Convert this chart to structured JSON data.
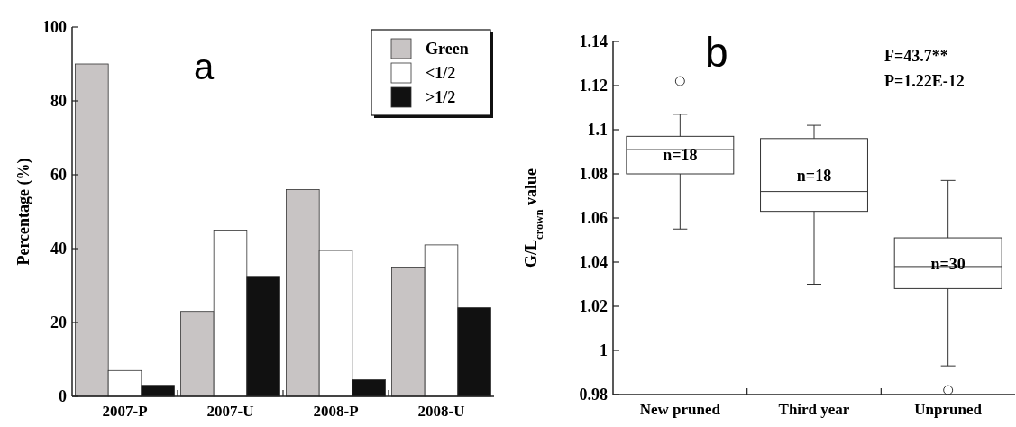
{
  "chart_data": [
    {
      "type": "bar",
      "title": "a",
      "ylabel": "Percentage (%)",
      "categories": [
        "2007-P",
        "2007-U",
        "2008-P",
        "2008-U"
      ],
      "series": [
        {
          "name": "Green",
          "color": "#c8c4c4",
          "values": [
            90,
            23,
            56,
            35
          ]
        },
        {
          "name": "<1/2",
          "color": "#ffffff",
          "values": [
            7,
            45,
            39.5,
            41
          ]
        },
        {
          "name": ">1/2",
          "color": "#111111",
          "values": [
            3,
            32.5,
            4.5,
            24
          ]
        }
      ],
      "ylim": [
        0,
        100
      ],
      "yticks": [
        0,
        20,
        40,
        60,
        80,
        100
      ],
      "legend": "top right",
      "grid": false
    },
    {
      "type": "box",
      "title": "b",
      "ylabel": "G/L$_{crown}$ value",
      "categories": [
        "New pruned",
        "Third year",
        "Unpruned"
      ],
      "boxes": [
        {
          "low": 1.055,
          "q1": 1.08,
          "median": 1.091,
          "q3": 1.097,
          "high": 1.107,
          "outliers": [
            1.122
          ]
        },
        {
          "low": 1.03,
          "q1": 1.063,
          "median": 1.072,
          "q3": 1.096,
          "high": 1.102
        },
        {
          "low": 0.993,
          "q1": 1.028,
          "median": 1.038,
          "q3": 1.051,
          "high": 1.077,
          "outliers": [
            0.982
          ]
        }
      ],
      "ylim": [
        0.98,
        1.14
      ],
      "yticks": [
        0.98,
        1,
        1.02,
        1.04,
        1.06,
        1.08,
        1.1,
        1.12,
        1.14
      ],
      "grid": false,
      "annotations": [
        "n=18",
        "n=18",
        "n=30",
        "F=43.7**",
        "P=1.22E-12"
      ]
    }
  ]
}
